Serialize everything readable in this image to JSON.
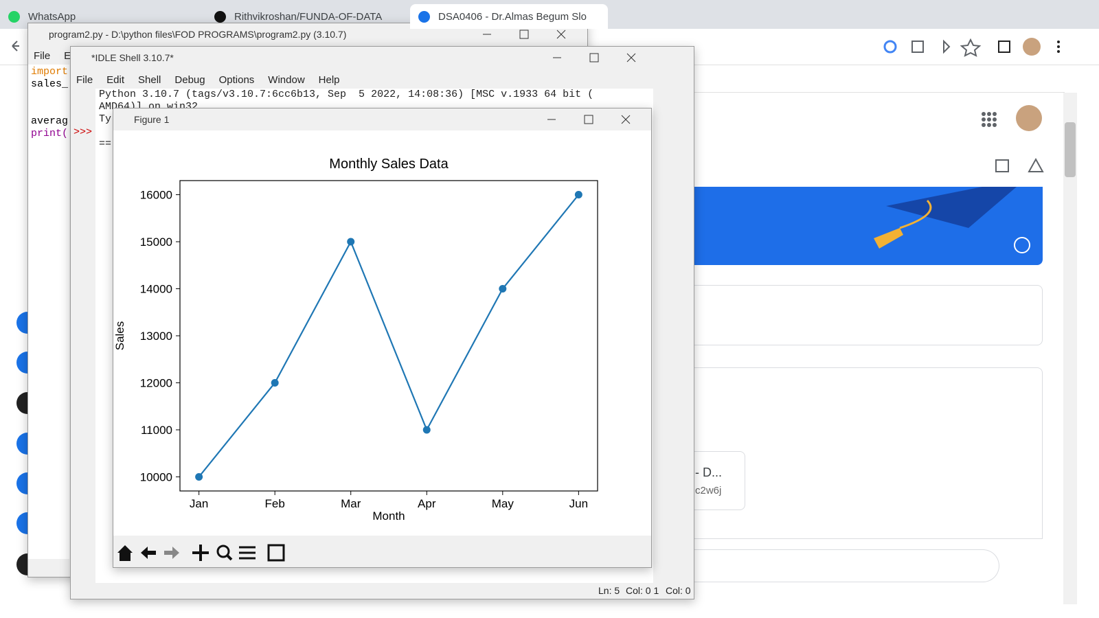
{
  "browser": {
    "tabs": [
      "WhatsApp",
      "Rithvikroshan/FUNDA-OF-DATA",
      "DSA0406 - Dr.Almas Begum Slo"
    ],
    "card_title": "- D...",
    "card_subtitle": "c2w6j"
  },
  "editor": {
    "title": "program2.py - D:\\python files\\FOD PROGRAMS\\program2.py (3.10.7)",
    "menu": [
      "File",
      "Ed"
    ],
    "code": [
      "import",
      "sales_",
      "averag",
      "print("
    ]
  },
  "shell": {
    "title": "*IDLE Shell 3.10.7*",
    "menu": [
      "File",
      "Edit",
      "Shell",
      "Debug",
      "Options",
      "Window",
      "Help"
    ],
    "lines": [
      "Python 3.10.7 (tags/v3.10.7:6cc6b13, Sep  5 2022, 14:08:36) [MSC v.1933 64 bit (",
      "AMD64)] on win32",
      "Ty",
      "=="
    ],
    "prompt": ">>>",
    "status": [
      "Ln: 5",
      "Col: 0 1",
      "Col: 0"
    ]
  },
  "figure": {
    "title": "Figure 1"
  },
  "chart_data": {
    "type": "line",
    "title": "Monthly Sales Data",
    "x_label": "Month",
    "y_label": "Sales",
    "categories": [
      "Jan",
      "Feb",
      "Mar",
      "Apr",
      "May",
      "Jun"
    ],
    "values": [
      10000,
      12000,
      15000,
      11000,
      14000,
      16000
    ],
    "color": "#1f77b4",
    "markers": true,
    "ylim": [
      9700,
      16300
    ],
    "yticks": [
      10000,
      11000,
      12000,
      13000,
      14000,
      15000,
      16000
    ],
    "grid": false
  }
}
